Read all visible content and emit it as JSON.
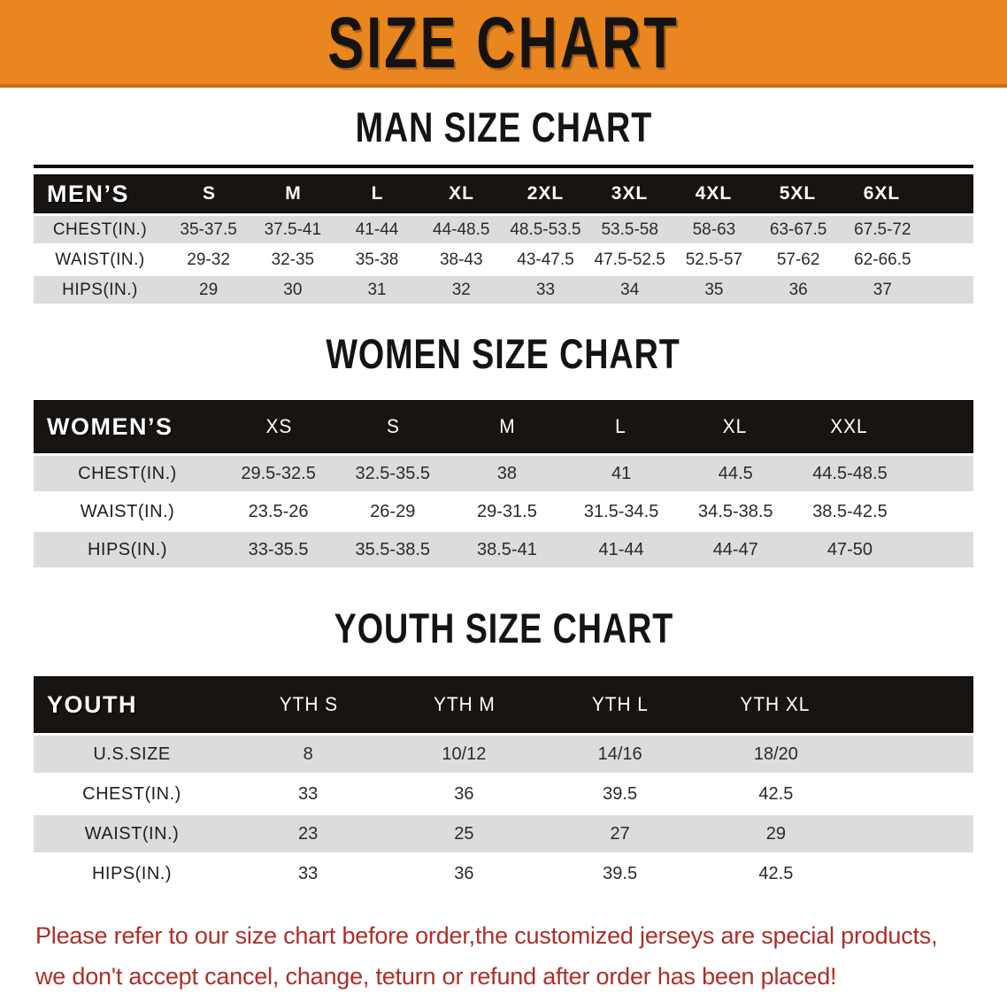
{
  "banner": {
    "title": "SIZE CHART",
    "bg_color": "#E9861F",
    "edge_color": "#C96F15",
    "text_color": "#151310"
  },
  "sections": [
    {
      "heading": "MAN SIZE CHART",
      "table": {
        "corner": "MEN’S",
        "columns": [
          "S",
          "M",
          "L",
          "XL",
          "2XL",
          "3XL",
          "4XL",
          "5XL",
          "6XL"
        ],
        "rows": [
          {
            "label": "CHEST(IN.)",
            "values": [
              "35-37.5",
              "37.5-41",
              "41-44",
              "44-48.5",
              "48.5-53.5",
              "53.5-58",
              "58-63",
              "63-67.5",
              "67.5-72"
            ]
          },
          {
            "label": "WAIST(IN.)",
            "values": [
              "29-32",
              "32-35",
              "35-38",
              "38-43",
              "43-47.5",
              "47.5-52.5",
              "52.5-57",
              "57-62",
              "62-66.5"
            ]
          },
          {
            "label": "HIPS(IN.)",
            "values": [
              "29",
              "30",
              "31",
              "32",
              "33",
              "34",
              "35",
              "36",
              "37"
            ]
          }
        ]
      }
    },
    {
      "heading": "WOMEN SIZE CHART",
      "table": {
        "corner": "WOMEN’S",
        "columns": [
          "XS",
          "S",
          "M",
          "L",
          "XL",
          "XXL"
        ],
        "rows": [
          {
            "label": "CHEST(IN.)",
            "values": [
              "29.5-32.5",
              "32.5-35.5",
              "38",
              "41",
              "44.5",
              "44.5-48.5"
            ]
          },
          {
            "label": "WAIST(IN.)",
            "values": [
              "23.5-26",
              "26-29",
              "29-31.5",
              "31.5-34.5",
              "34.5-38.5",
              "38.5-42.5"
            ]
          },
          {
            "label": "HIPS(IN.)",
            "values": [
              "33-35.5",
              "35.5-38.5",
              "38.5-41",
              "41-44",
              "44-47",
              "47-50"
            ]
          }
        ]
      }
    },
    {
      "heading": "YOUTH SIZE CHART",
      "table": {
        "corner": "YOUTH",
        "columns": [
          "YTH S",
          "YTH M",
          "YTH L",
          "YTH XL"
        ],
        "rows": [
          {
            "label": "U.S.SIZE",
            "values": [
              "8",
              "10/12",
              "14/16",
              "18/20"
            ]
          },
          {
            "label": "CHEST(IN.)",
            "values": [
              "33",
              "36",
              "39.5",
              "42.5"
            ]
          },
          {
            "label": "WAIST(IN.)",
            "values": [
              "23",
              "25",
              "27",
              "29"
            ]
          },
          {
            "label": "HIPS(IN.)",
            "values": [
              "33",
              "36",
              "39.5",
              "42.5"
            ]
          }
        ]
      }
    }
  ],
  "footer": {
    "line1": "Please refer to our size chart before order,the customized jerseys are special products,",
    "line2": "we don't accept cancel, change, teturn or refund after order has been placed!",
    "text_color": "#AF2E28"
  },
  "colors": {
    "header_bar": "#171412",
    "row_gray": "#DCDCDC",
    "row_white": "#FFFFFF",
    "row_text": "#2A2A2A",
    "heading_text": "#141414"
  }
}
